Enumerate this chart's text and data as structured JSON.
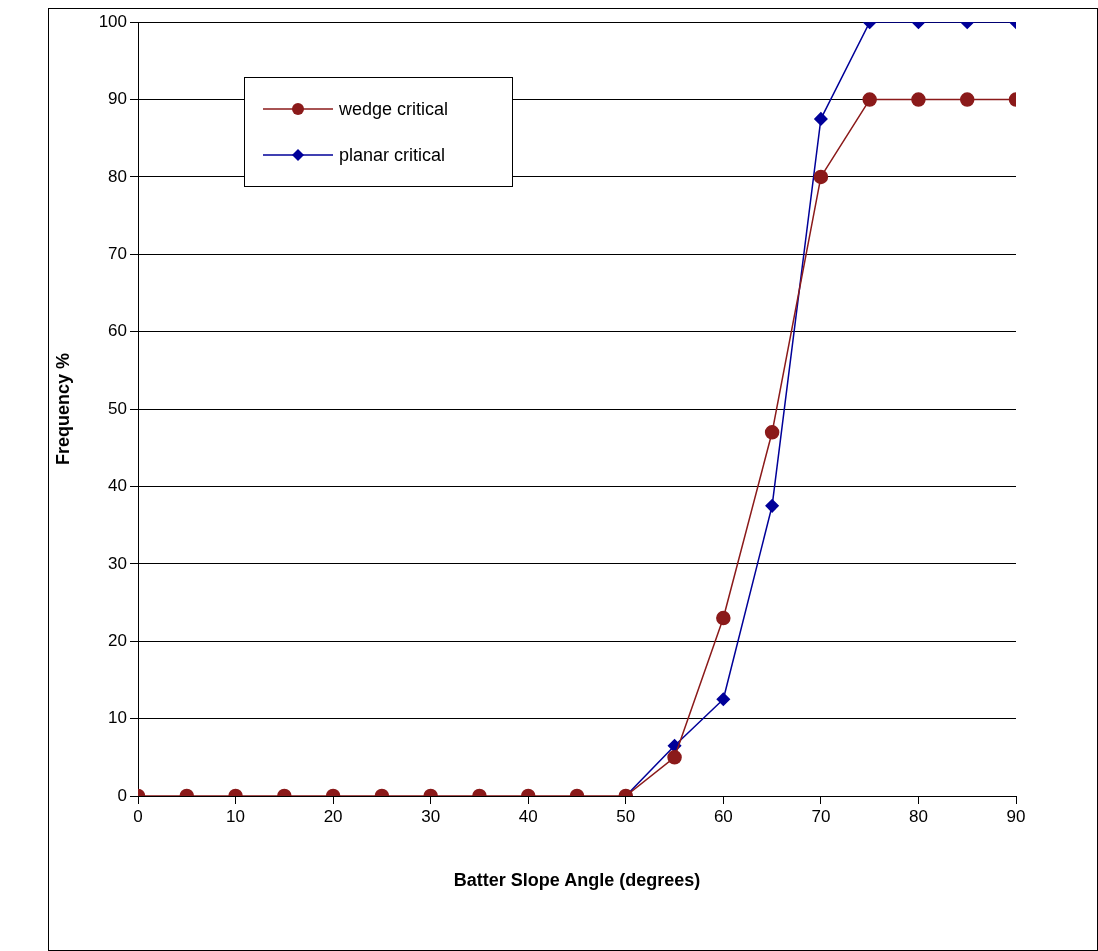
{
  "chart_data": {
    "type": "line",
    "xlabel": "Batter Slope Angle (degrees)",
    "ylabel": "Frequency %",
    "x": [
      0,
      5,
      10,
      15,
      20,
      25,
      30,
      35,
      40,
      45,
      50,
      55,
      60,
      65,
      70,
      75,
      80,
      85,
      90
    ],
    "series": [
      {
        "name": "wedge critical",
        "color": "#8b1a1a",
        "marker": "circle",
        "values": [
          0,
          0,
          0,
          0,
          0,
          0,
          0,
          0,
          0,
          0,
          0,
          5,
          23,
          47,
          80,
          90,
          90,
          90,
          90
        ]
      },
      {
        "name": "planar critical",
        "color": "#000099",
        "marker": "diamond",
        "values": [
          null,
          null,
          null,
          null,
          null,
          null,
          null,
          null,
          null,
          null,
          0,
          6.5,
          12.5,
          37.5,
          87.5,
          100,
          100,
          100,
          100
        ]
      }
    ],
    "xlim": [
      0,
      90
    ],
    "xticks": [
      0,
      10,
      20,
      30,
      40,
      50,
      60,
      70,
      80,
      90
    ],
    "ylim": [
      0,
      100
    ],
    "yticks": [
      0,
      10,
      20,
      30,
      40,
      50,
      60,
      70,
      80,
      90,
      100
    ],
    "grid": "y",
    "legend": "top left",
    "line_style": "solid"
  }
}
